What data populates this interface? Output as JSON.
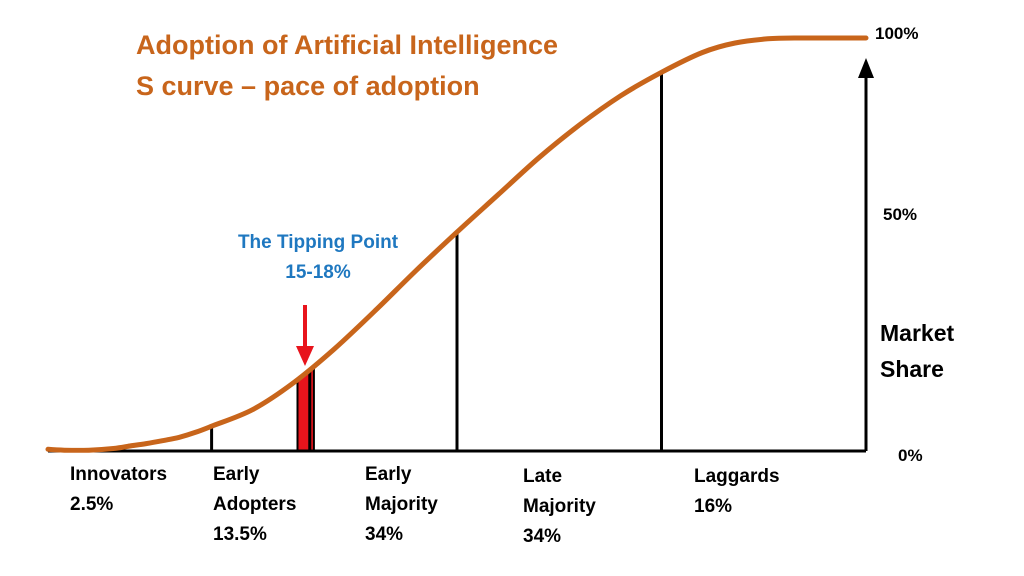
{
  "colors": {
    "curve": "#c8651b",
    "title": "#c8651b",
    "tipping": "#1f78c0",
    "arrow": "#e8141c",
    "axis": "#000000"
  },
  "chart_data": {
    "type": "line",
    "title": "Adoption of Artificial Intelligence",
    "subtitle": "S curve – pace of adoption",
    "ylabel": [
      "Market",
      "Share"
    ],
    "ylim": [
      0,
      100
    ],
    "y_ticks": [
      {
        "value": 0,
        "label": "0%"
      },
      {
        "value": 50,
        "label": "50%"
      },
      {
        "value": 100,
        "label": "100%"
      }
    ],
    "curve": {
      "x": [
        0,
        2,
        5,
        8,
        10,
        12,
        14,
        16,
        18,
        20,
        25,
        30,
        35,
        40,
        45,
        50,
        55,
        60,
        65,
        70,
        75,
        80,
        84,
        88,
        92,
        96,
        100
      ],
      "y": [
        0.4,
        0.2,
        0.2,
        0.6,
        1.2,
        1.8,
        2.5,
        3.3,
        4.5,
        6.0,
        10.0,
        16.5,
        24.7,
        34.0,
        43.7,
        53.0,
        62.0,
        71.0,
        79.0,
        86.0,
        91.7,
        96.5,
        98.8,
        99.8,
        100,
        100,
        100
      ]
    },
    "segment_boundaries": [
      20,
      32,
      50,
      75
    ],
    "segments": [
      {
        "lines": [
          "Innovators",
          "2.5%"
        ]
      },
      {
        "lines": [
          "Early",
          "Adopters",
          "13.5%"
        ]
      },
      {
        "lines": [
          "Early",
          "Majority",
          "34%"
        ]
      },
      {
        "lines": [
          "Late",
          "Majority",
          "34%"
        ]
      },
      {
        "lines": [
          "Laggards",
          "16%"
        ]
      }
    ],
    "tipping_point": {
      "label_lines": [
        "The Tipping Point",
        "15-18%"
      ],
      "x_range": [
        30.5,
        32.5
      ]
    }
  }
}
